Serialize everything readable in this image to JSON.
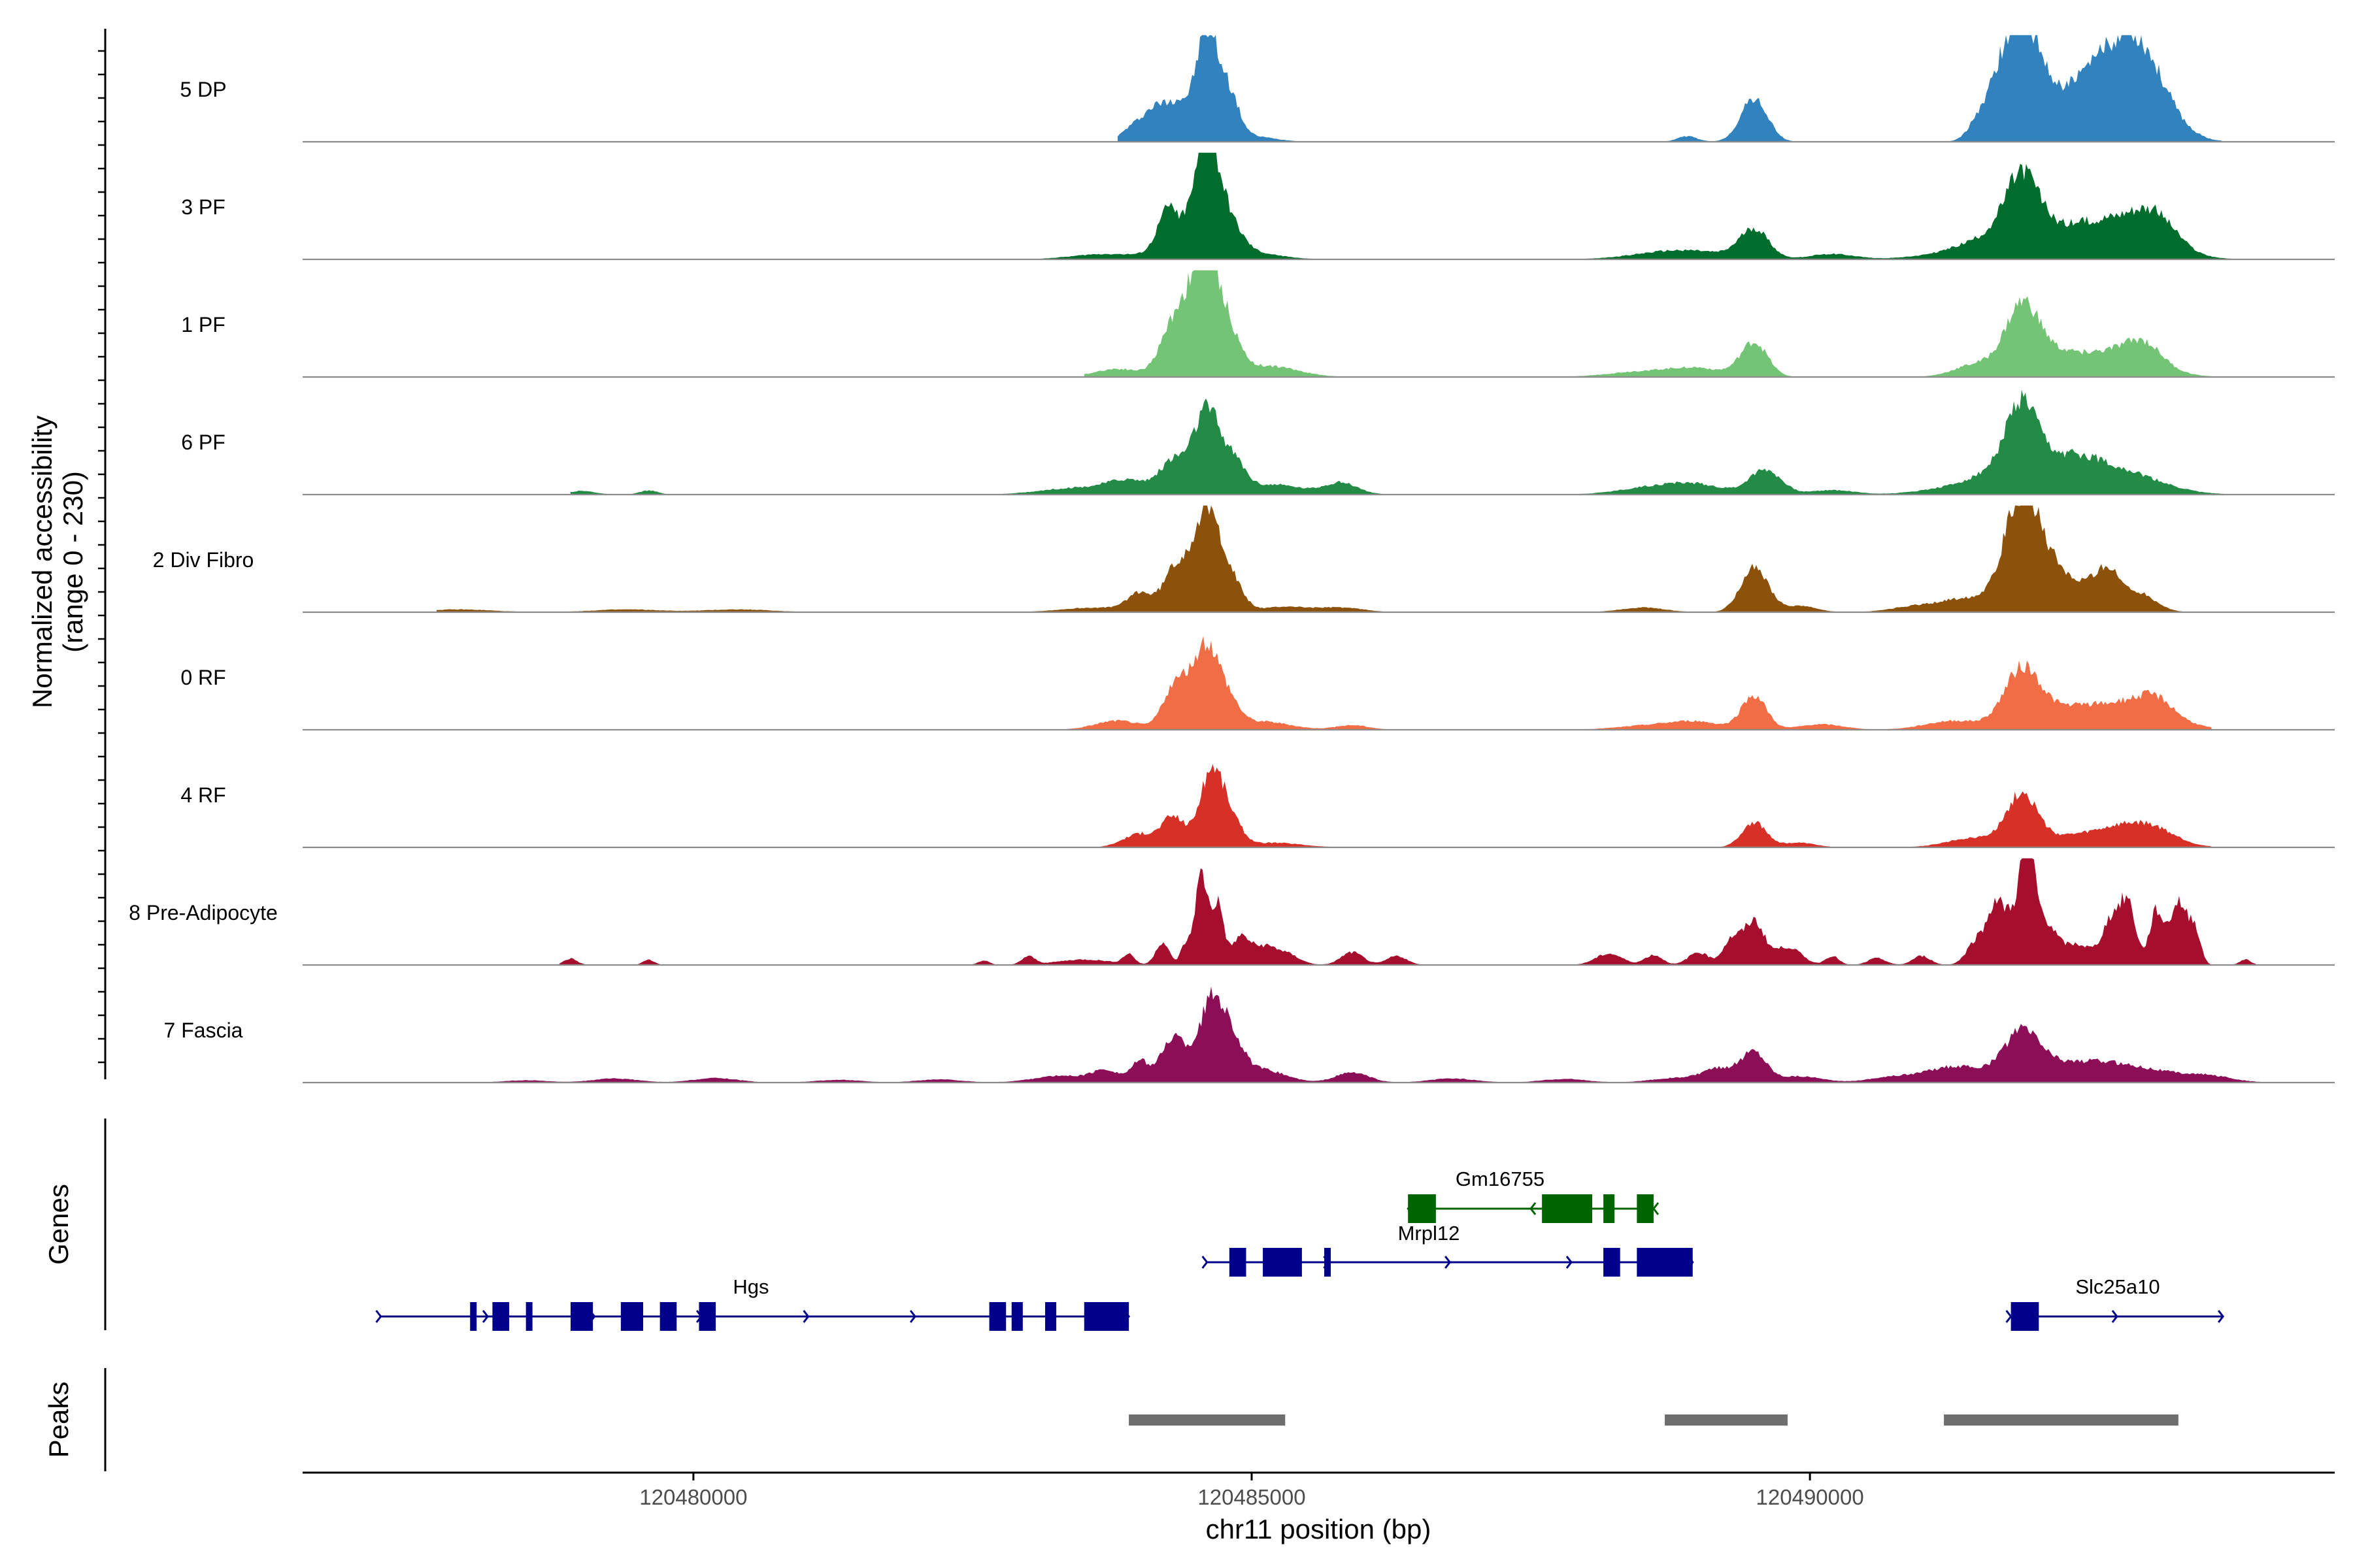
{
  "chart_data": {
    "type": "area",
    "title": "",
    "ylabel_line1": "Normalized accessibility",
    "ylabel_line2": "(range 0 - 230)",
    "y_range": [
      0,
      230
    ],
    "xlabel": "chr11 position (bp)",
    "x_range": [
      120476500,
      120494700
    ],
    "x_ticks": [
      120480000,
      120485000,
      120490000
    ],
    "x_tick_labels": [
      "120480000",
      "120485000",
      "120490000"
    ],
    "series": [
      {
        "name": "5 DP",
        "color": "#3182BD",
        "scale": 1.0,
        "peaks": [
          [
            120483900,
            60,
            6
          ],
          [
            120484200,
            200,
            85
          ],
          [
            120484350,
            60,
            22
          ],
          [
            120484600,
            100,
            230
          ],
          [
            120484800,
            90,
            90
          ],
          [
            120485000,
            200,
            12
          ],
          [
            120489500,
            120,
            95
          ],
          [
            120488900,
            90,
            12
          ],
          [
            120491500,
            90,
            32
          ],
          [
            120491700,
            120,
            75
          ],
          [
            120491900,
            160,
            195
          ],
          [
            120492100,
            280,
            60
          ],
          [
            120492700,
            320,
            150
          ],
          [
            120492950,
            240,
            120
          ]
        ],
        "extent": [
          120483800,
          120493700
        ]
      },
      {
        "name": "3 PF",
        "color": "#006D2C",
        "scale": 1.0,
        "peaks": [
          [
            120483700,
            300,
            12
          ],
          [
            120484250,
            90,
            80
          ],
          [
            120484400,
            200,
            40
          ],
          [
            120484600,
            110,
            225
          ],
          [
            120484800,
            120,
            60
          ],
          [
            120485000,
            250,
            14
          ],
          [
            120488600,
            300,
            10
          ],
          [
            120489000,
            300,
            15
          ],
          [
            120489500,
            130,
            65
          ],
          [
            120490200,
            200,
            12
          ],
          [
            120491200,
            300,
            10
          ],
          [
            120491600,
            240,
            40
          ],
          [
            120491900,
            150,
            145
          ],
          [
            120492200,
            280,
            50
          ],
          [
            120492800,
            340,
            85
          ],
          [
            120493100,
            180,
            50
          ]
        ],
        "extent": [
          120477500,
          120494100
        ]
      },
      {
        "name": "1 PF",
        "color": "#74C476",
        "scale": 1.0,
        "peaks": [
          [
            120483800,
            200,
            18
          ],
          [
            120484300,
            120,
            110
          ],
          [
            120484450,
            100,
            60
          ],
          [
            120484600,
            120,
            235
          ],
          [
            120484800,
            110,
            70
          ],
          [
            120485150,
            260,
            24
          ],
          [
            120488500,
            300,
            12
          ],
          [
            120489000,
            240,
            18
          ],
          [
            120489500,
            120,
            75
          ],
          [
            120491500,
            200,
            28
          ],
          [
            120491900,
            150,
            140
          ],
          [
            120492200,
            250,
            45
          ],
          [
            120492800,
            300,
            55
          ],
          [
            120493000,
            150,
            35
          ]
        ],
        "extent": [
          120483500,
          120493600
        ]
      },
      {
        "name": "6 PF",
        "color": "#238B45",
        "scale": 1.0,
        "peaks": [
          [
            120479000,
            120,
            8
          ],
          [
            120479600,
            80,
            9
          ],
          [
            120483400,
            300,
            14
          ],
          [
            120483900,
            200,
            30
          ],
          [
            120484300,
            120,
            70
          ],
          [
            120484600,
            120,
            185
          ],
          [
            120484850,
            100,
            60
          ],
          [
            120485200,
            250,
            22
          ],
          [
            120485800,
            150,
            26
          ],
          [
            120488600,
            300,
            16
          ],
          [
            120489000,
            250,
            18
          ],
          [
            120489600,
            140,
            55
          ],
          [
            120490200,
            200,
            10
          ],
          [
            120491300,
            300,
            15
          ],
          [
            120491700,
            230,
            42
          ],
          [
            120491900,
            140,
            150
          ],
          [
            120492300,
            280,
            70
          ],
          [
            120492800,
            350,
            45
          ]
        ],
        "extent": [
          120478900,
          120494000
        ]
      },
      {
        "name": "2 Div Fibro",
        "color": "#8C510A",
        "scale": 1.0,
        "peaks": [
          [
            120477900,
            300,
            6
          ],
          [
            120479400,
            300,
            6
          ],
          [
            120480400,
            300,
            6
          ],
          [
            120483600,
            300,
            10
          ],
          [
            120484000,
            110,
            40
          ],
          [
            120484300,
            100,
            80
          ],
          [
            120484600,
            140,
            225
          ],
          [
            120484850,
            100,
            35
          ],
          [
            120485300,
            200,
            12
          ],
          [
            120485800,
            200,
            10
          ],
          [
            120488500,
            200,
            10
          ],
          [
            120489500,
            120,
            100
          ],
          [
            120489900,
            150,
            14
          ],
          [
            120490900,
            200,
            10
          ],
          [
            120491400,
            250,
            30
          ],
          [
            120491900,
            160,
            225
          ],
          [
            120492200,
            250,
            80
          ],
          [
            120492650,
            120,
            80
          ],
          [
            120492950,
            150,
            40
          ]
        ],
        "extent": [
          120477700,
          120494100
        ]
      },
      {
        "name": "0 RF",
        "color": "#F16D45",
        "scale": 1.0,
        "peaks": [
          [
            120483800,
            200,
            20
          ],
          [
            120484300,
            100,
            90
          ],
          [
            120484450,
            90,
            40
          ],
          [
            120484600,
            110,
            175
          ],
          [
            120484800,
            100,
            50
          ],
          [
            120485100,
            240,
            18
          ],
          [
            120485900,
            150,
            10
          ],
          [
            120488600,
            300,
            10
          ],
          [
            120489000,
            220,
            15
          ],
          [
            120489500,
            110,
            75
          ],
          [
            120490100,
            200,
            12
          ],
          [
            120491300,
            260,
            20
          ],
          [
            120491900,
            160,
            125
          ],
          [
            120492300,
            280,
            40
          ],
          [
            120492900,
            320,
            55
          ],
          [
            120493100,
            150,
            30
          ]
        ],
        "extent": [
          120477700,
          120493600
        ]
      },
      {
        "name": "4 RF",
        "color": "#D73027",
        "scale": 1.0,
        "peaks": [
          [
            120484000,
            150,
            30
          ],
          [
            120484300,
            100,
            65
          ],
          [
            120484650,
            110,
            175
          ],
          [
            120484850,
            90,
            35
          ],
          [
            120485200,
            250,
            10
          ],
          [
            120489500,
            110,
            55
          ],
          [
            120489900,
            150,
            10
          ],
          [
            120491500,
            250,
            22
          ],
          [
            120491900,
            130,
            110
          ],
          [
            120492200,
            230,
            18
          ],
          [
            120492800,
            300,
            45
          ],
          [
            120493100,
            200,
            20
          ]
        ],
        "extent": [
          120483300,
          120493600
        ]
      },
      {
        "name": "8 Pre-Adipocyte",
        "color": "#A50F2D",
        "scale": 1.0,
        "peaks": [
          [
            120478900,
            60,
            14
          ],
          [
            120479600,
            50,
            12
          ],
          [
            120482600,
            50,
            10
          ],
          [
            120483000,
            60,
            18
          ],
          [
            120483500,
            250,
            12
          ],
          [
            120483900,
            50,
            22
          ],
          [
            120484200,
            60,
            50
          ],
          [
            120484400,
            40,
            40
          ],
          [
            120484550,
            60,
            200
          ],
          [
            120484700,
            50,
            130
          ],
          [
            120484900,
            80,
            60
          ],
          [
            120485100,
            100,
            35
          ],
          [
            120485300,
            120,
            25
          ],
          [
            120485900,
            100,
            28
          ],
          [
            120486300,
            90,
            20
          ],
          [
            120488200,
            120,
            25
          ],
          [
            120488600,
            80,
            22
          ],
          [
            120489000,
            90,
            28
          ],
          [
            120489300,
            80,
            55
          ],
          [
            120489500,
            90,
            95
          ],
          [
            120489800,
            120,
            40
          ],
          [
            120490200,
            60,
            20
          ],
          [
            120490600,
            80,
            15
          ],
          [
            120491000,
            80,
            20
          ],
          [
            120491500,
            90,
            55
          ],
          [
            120491650,
            60,
            75
          ],
          [
            120491800,
            120,
            115
          ],
          [
            120491950,
            60,
            210
          ],
          [
            120492100,
            100,
            90
          ],
          [
            120492400,
            140,
            45
          ],
          [
            120492700,
            80,
            95
          ],
          [
            120492850,
            70,
            130
          ],
          [
            120493100,
            60,
            115
          ],
          [
            120493300,
            80,
            140
          ],
          [
            120493450,
            50,
            70
          ],
          [
            120493900,
            50,
            12
          ]
        ],
        "extent": [
          120478800,
          120494000
        ]
      },
      {
        "name": "7 Fascia",
        "color": "#8C0E57",
        "scale": 1.0,
        "peaks": [
          [
            120478500,
            200,
            5
          ],
          [
            120479300,
            200,
            9
          ],
          [
            120480200,
            200,
            10
          ],
          [
            120481300,
            200,
            6
          ],
          [
            120482200,
            200,
            7
          ],
          [
            120483300,
            250,
            15
          ],
          [
            120483700,
            120,
            25
          ],
          [
            120484000,
            80,
            45
          ],
          [
            120484300,
            110,
            100
          ],
          [
            120484650,
            120,
            185
          ],
          [
            120484850,
            100,
            55
          ],
          [
            120485100,
            200,
            28
          ],
          [
            120485900,
            150,
            22
          ],
          [
            120486800,
            200,
            9
          ],
          [
            120487800,
            200,
            8
          ],
          [
            120488800,
            220,
            10
          ],
          [
            120489200,
            150,
            30
          ],
          [
            120489500,
            110,
            65
          ],
          [
            120489900,
            200,
            14
          ],
          [
            120490700,
            200,
            10
          ],
          [
            120491300,
            280,
            35
          ],
          [
            120491900,
            160,
            95
          ],
          [
            120492300,
            350,
            35
          ],
          [
            120492900,
            400,
            30
          ],
          [
            120493600,
            200,
            10
          ]
        ],
        "extent": [
          120477700,
          120494200
        ]
      }
    ],
    "genes": [
      {
        "name": "Gm16755",
        "strand": "-",
        "color": "#006400",
        "row": 0,
        "start": 120486400,
        "end": 120488600,
        "exons": [
          [
            120486400,
            120486650
          ],
          [
            120487600,
            120488050
          ],
          [
            120488150,
            120488250
          ],
          [
            120488450,
            120488600
          ]
        ]
      },
      {
        "name": "Mrpl12",
        "strand": "+",
        "color": "#00008B",
        "row": 1,
        "start": 120484600,
        "end": 120488950,
        "exons": [
          [
            120484800,
            120484950
          ],
          [
            120485100,
            120485450
          ],
          [
            120485650,
            120485700
          ],
          [
            120488150,
            120488300
          ],
          [
            120488450,
            120488950
          ]
        ]
      },
      {
        "name": "Hgs",
        "strand": "+",
        "color": "#00008B",
        "row": 2,
        "start": 120477200,
        "end": 120483900,
        "exons": [
          [
            120478000,
            120478050
          ],
          [
            120478200,
            120478350
          ],
          [
            120478500,
            120478550
          ],
          [
            120478900,
            120479100
          ],
          [
            120479350,
            120479550
          ],
          [
            120479700,
            120479850
          ],
          [
            120480050,
            120480200
          ],
          [
            120482650,
            120482800
          ],
          [
            120482850,
            120482950
          ],
          [
            120483150,
            120483250
          ],
          [
            120483500,
            120483900
          ]
        ]
      },
      {
        "name": "Slc25a10",
        "strand": "+",
        "color": "#00008B",
        "row": 2,
        "start": 120491800,
        "end": 120493700,
        "exons": [
          [
            120491800,
            120492050
          ]
        ]
      }
    ],
    "peaks": [
      {
        "start": 120483900,
        "end": 120485300
      },
      {
        "start": 120488700,
        "end": 120489800
      },
      {
        "start": 120491200,
        "end": 120493300
      }
    ],
    "panel_labels": {
      "genes": "Genes",
      "peaks": "Peaks"
    }
  }
}
